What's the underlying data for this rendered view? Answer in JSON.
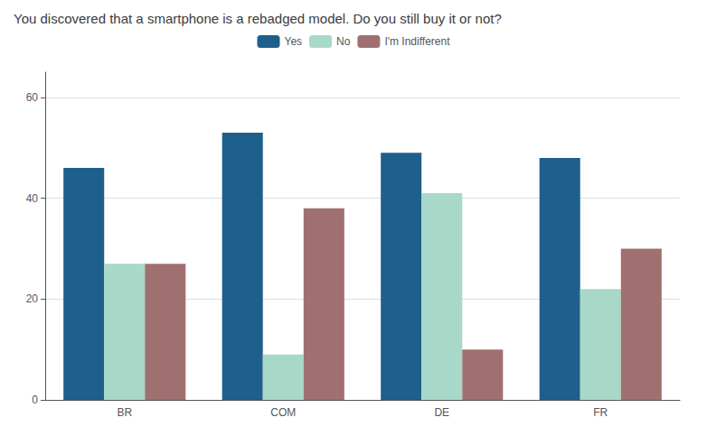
{
  "chart_data": {
    "type": "bar",
    "title": "You discovered that a smartphone is a rebadged model. Do you still buy it or not?",
    "categories": [
      "BR",
      "COM",
      "DE",
      "FR"
    ],
    "series": [
      {
        "name": "Yes",
        "color": "#1f5f8b",
        "values": [
          46,
          53,
          49,
          48
        ]
      },
      {
        "name": "No",
        "color": "#a8d8c8",
        "values": [
          27,
          9,
          41,
          22
        ]
      },
      {
        "name": "I'm Indifferent",
        "color": "#a07070",
        "values": [
          27,
          38,
          10,
          30
        ]
      }
    ],
    "ylim": [
      0,
      65
    ],
    "yticks": [
      0,
      20,
      40,
      60
    ],
    "grid": true,
    "legend": "top"
  }
}
